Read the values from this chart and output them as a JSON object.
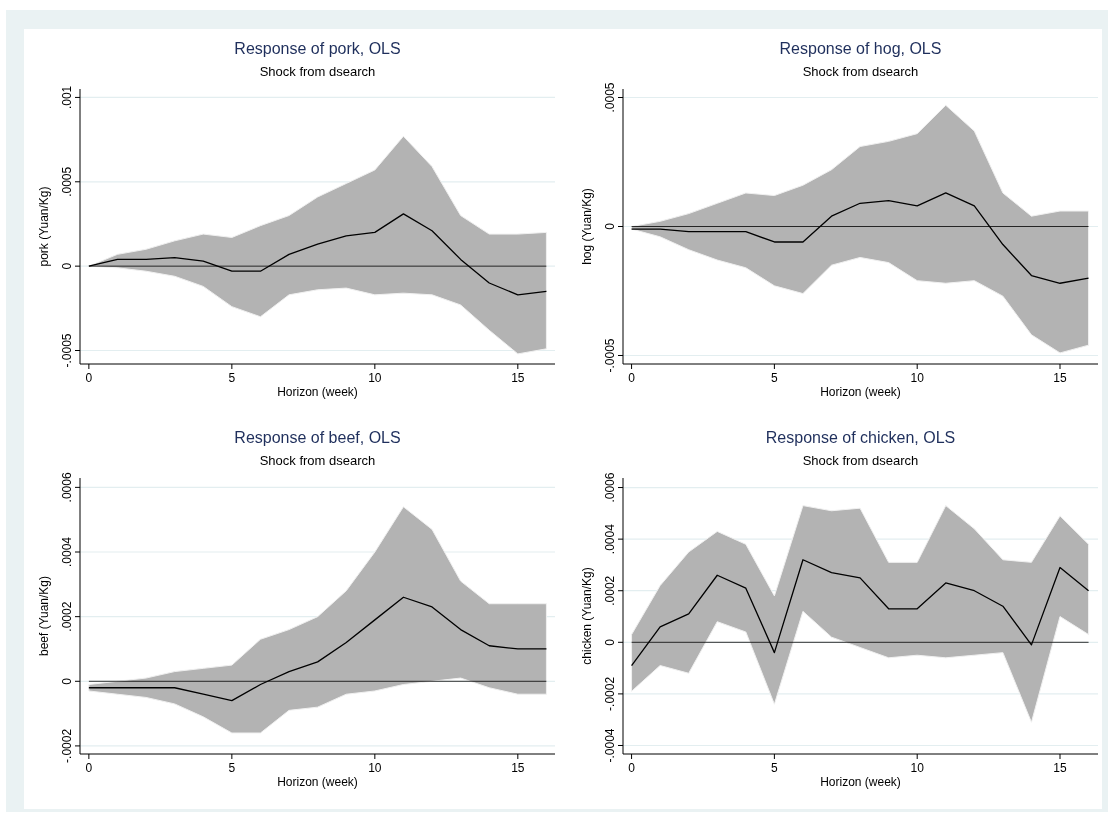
{
  "chart_data": [
    {
      "type": "line",
      "title": "Response of pork, OLS",
      "subtitle": "Shock from dsearch",
      "xlabel": "Horizon (week)",
      "ylabel": "pork (Yuan/Kg)",
      "x": [
        0,
        1,
        2,
        3,
        4,
        5,
        6,
        7,
        8,
        9,
        10,
        11,
        12,
        13,
        14,
        15,
        16
      ],
      "xlim": [
        -0.31,
        16.3
      ],
      "xticks": [
        0,
        5,
        10,
        15
      ],
      "ylim": [
        -0.00058,
        0.00105
      ],
      "yticks": [
        {
          "value": -0.0005,
          "label": "-.0005"
        },
        {
          "value": 0,
          "label": "0"
        },
        {
          "value": 0.0005,
          "label": ".0005"
        },
        {
          "value": 0.001,
          "label": ".001"
        }
      ],
      "grid": "y",
      "ref_lines": [
        {
          "axis": "y",
          "value": 0,
          "color": "#000000"
        }
      ],
      "series": [
        {
          "color": "#000000",
          "values": [
            0,
            4e-05,
            4e-05,
            5e-05,
            3e-05,
            -3e-05,
            -3e-05,
            7e-05,
            0.00013,
            0.00018,
            0.0002,
            0.00031,
            0.00021,
            4e-05,
            -0.0001,
            -0.00017,
            -0.00015
          ],
          "lower": [
            0,
            -1e-05,
            -3e-05,
            -6e-05,
            -0.00012,
            -0.00024,
            -0.0003,
            -0.00017,
            -0.00014,
            -0.00013,
            -0.00017,
            -0.00016,
            -0.00017,
            -0.00023,
            -0.00038,
            -0.00052,
            -0.00049
          ],
          "upper": [
            0,
            7e-05,
            0.0001,
            0.00015,
            0.00019,
            0.00017,
            0.00024,
            0.0003,
            0.00041,
            0.00049,
            0.00057,
            0.00077,
            0.00059,
            0.0003,
            0.00019,
            0.00019,
            0.0002
          ]
        }
      ]
    },
    {
      "type": "line",
      "title": "Response of hog, OLS",
      "subtitle": "Shock from dsearch",
      "xlabel": "Horizon (week)",
      "ylabel": "hog (Yuan/Kg)",
      "x": [
        0,
        1,
        2,
        3,
        4,
        5,
        6,
        7,
        8,
        9,
        10,
        11,
        12,
        13,
        14,
        15,
        16
      ],
      "xlim": [
        -0.3,
        16.33
      ],
      "xticks": [
        0,
        5,
        10,
        15
      ],
      "ylim": [
        -0.000533,
        0.000533
      ],
      "yticks": [
        {
          "value": -0.0005,
          "label": "-.0005"
        },
        {
          "value": 0,
          "label": "0"
        },
        {
          "value": 0.0005,
          "label": ".0005"
        }
      ],
      "grid": "y",
      "ref_lines": [
        {
          "axis": "y",
          "value": 0,
          "color": "#000000"
        }
      ],
      "series": [
        {
          "color": "#000000",
          "values": [
            -1e-05,
            -1e-05,
            -2e-05,
            -2e-05,
            -2e-05,
            -6e-05,
            -6e-05,
            4e-05,
            9e-05,
            0.0001,
            8e-05,
            0.00013,
            8e-05,
            -7e-05,
            -0.00019,
            -0.00022,
            -0.0002
          ],
          "lower": [
            -1e-05,
            -4e-05,
            -9e-05,
            -0.00013,
            -0.00016,
            -0.00023,
            -0.00026,
            -0.00015,
            -0.00012,
            -0.00014,
            -0.00021,
            -0.00022,
            -0.00021,
            -0.00027,
            -0.00042,
            -0.00049,
            -0.00046
          ],
          "upper": [
            0,
            2e-05,
            5e-05,
            9e-05,
            0.00013,
            0.00012,
            0.00016,
            0.00022,
            0.00031,
            0.00033,
            0.00036,
            0.00047,
            0.00037,
            0.00013,
            4e-05,
            6e-05,
            6e-05
          ]
        }
      ]
    },
    {
      "type": "line",
      "title": "Response of beef, OLS",
      "subtitle": "Shock from dsearch",
      "xlabel": "Horizon (week)",
      "ylabel": "beef (Yuan/Kg)",
      "x": [
        0,
        1,
        2,
        3,
        4,
        5,
        6,
        7,
        8,
        9,
        10,
        11,
        12,
        13,
        14,
        15,
        16
      ],
      "xlim": [
        -0.31,
        16.3
      ],
      "xticks": [
        0,
        5,
        10,
        15
      ],
      "ylim": [
        -0.000225,
        0.000629
      ],
      "yticks": [
        {
          "value": -0.0002,
          "label": "-.0002"
        },
        {
          "value": 0,
          "label": "0"
        },
        {
          "value": 0.0002,
          "label": ".0002"
        },
        {
          "value": 0.0004,
          "label": ".0004"
        },
        {
          "value": 0.0006,
          "label": ".0006"
        }
      ],
      "grid": "y",
      "ref_lines": [
        {
          "axis": "y",
          "value": 0,
          "color": "#000000"
        }
      ],
      "series": [
        {
          "color": "#000000",
          "values": [
            -2e-05,
            -2e-05,
            -2e-05,
            -2e-05,
            -4e-05,
            -6e-05,
            -1e-05,
            3e-05,
            6e-05,
            0.00012,
            0.00019,
            0.00026,
            0.00023,
            0.00016,
            0.00011,
            0.0001,
            0.0001
          ],
          "lower": [
            -3e-05,
            -4e-05,
            -5e-05,
            -7e-05,
            -0.00011,
            -0.00016,
            -0.00016,
            -9e-05,
            -8e-05,
            -4e-05,
            -3e-05,
            -1e-05,
            0,
            1e-05,
            -2e-05,
            -4e-05,
            -4e-05
          ],
          "upper": [
            -1e-05,
            0,
            1e-05,
            3e-05,
            4e-05,
            5e-05,
            0.00013,
            0.00016,
            0.0002,
            0.00028,
            0.0004,
            0.00054,
            0.00047,
            0.00031,
            0.00024,
            0.00024,
            0.00024
          ]
        }
      ]
    },
    {
      "type": "line",
      "title": "Response of chicken, OLS",
      "subtitle": "Shock from dsearch",
      "xlabel": "Horizon (week)",
      "ylabel": "chicken (Yuan/Kg)",
      "x": [
        0,
        1,
        2,
        3,
        4,
        5,
        6,
        7,
        8,
        9,
        10,
        11,
        12,
        13,
        14,
        15,
        16
      ],
      "xlim": [
        -0.3,
        16.33
      ],
      "xticks": [
        0,
        5,
        10,
        15
      ],
      "ylim": [
        -0.000433,
        0.000637
      ],
      "yticks": [
        {
          "value": -0.0004,
          "label": "-.0004"
        },
        {
          "value": -0.0002,
          "label": "-.0002"
        },
        {
          "value": 0,
          "label": "0"
        },
        {
          "value": 0.0002,
          "label": ".0002"
        },
        {
          "value": 0.0004,
          "label": ".0004"
        },
        {
          "value": 0.0006,
          "label": ".0006"
        }
      ],
      "grid": "y",
      "ref_lines": [
        {
          "axis": "y",
          "value": 0,
          "color": "#000000"
        }
      ],
      "series": [
        {
          "color": "#000000",
          "values": [
            -9e-05,
            6e-05,
            0.00011,
            0.00026,
            0.00021,
            -4e-05,
            0.00032,
            0.00027,
            0.00025,
            0.00013,
            0.00013,
            0.00023,
            0.0002,
            0.00014,
            -1e-05,
            0.00029,
            0.0002
          ],
          "lower": [
            -0.00019,
            -9e-05,
            -0.00012,
            8e-05,
            4e-05,
            -0.00024,
            0.00012,
            2e-05,
            -2e-05,
            -6e-05,
            -5e-05,
            -6e-05,
            -5e-05,
            -4e-05,
            -0.00031,
            0.0001,
            3e-05
          ],
          "upper": [
            3e-05,
            0.00022,
            0.00035,
            0.00043,
            0.00038,
            0.00018,
            0.00053,
            0.00051,
            0.00052,
            0.00031,
            0.00031,
            0.00053,
            0.00044,
            0.00032,
            0.00031,
            0.00049,
            0.00038
          ]
        }
      ]
    }
  ]
}
